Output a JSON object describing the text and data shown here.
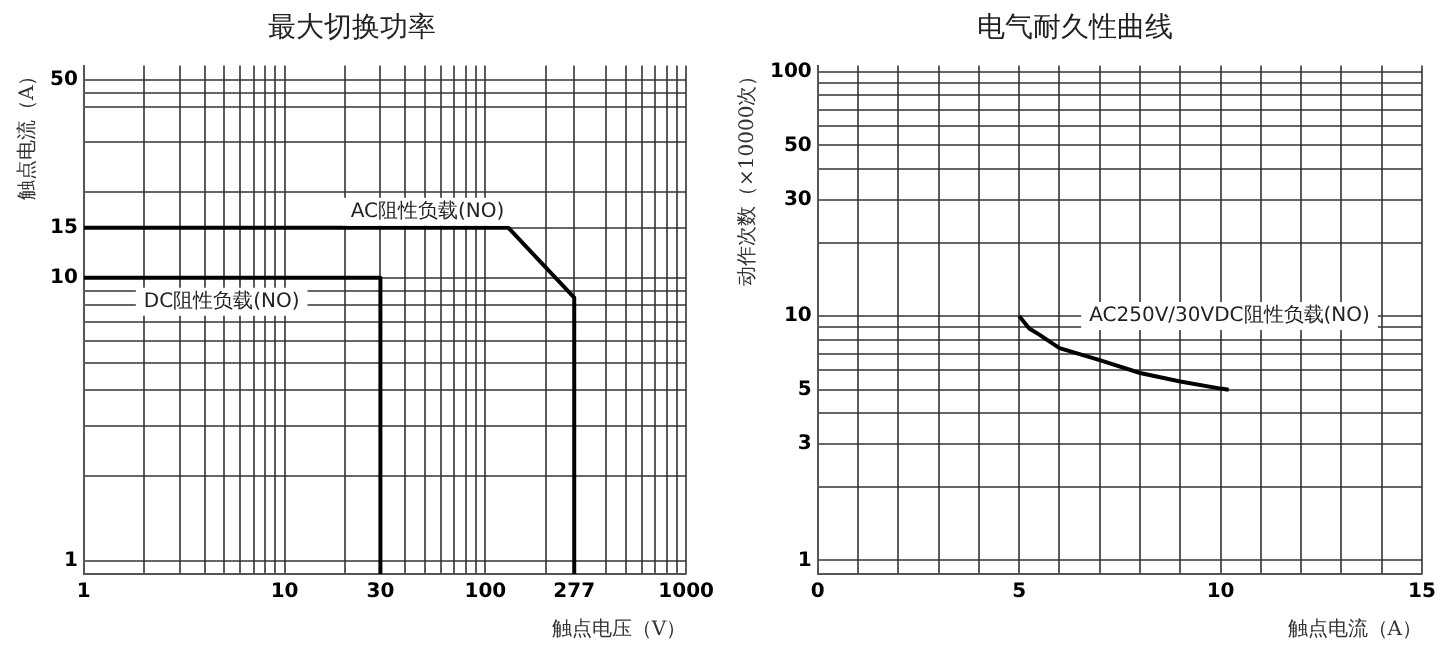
{
  "chart_data": [
    {
      "type": "line",
      "title": "最大切换功率",
      "xlabel": "触点电压（V）",
      "ylabel": "触点电流（A）",
      "log": "xy",
      "grid": true,
      "legend": false,
      "marker": "none",
      "line_style": "solid",
      "xlim": [
        1,
        1000
      ],
      "xticks": [
        1,
        {
          "value": 2,
          "label": null
        },
        {
          "value": 3,
          "label": null
        },
        {
          "value": 4,
          "label": null
        },
        {
          "value": 5,
          "label": null
        },
        {
          "value": 6,
          "label": null
        },
        {
          "value": 7,
          "label": null
        },
        {
          "value": 8,
          "label": null
        },
        {
          "value": 9,
          "label": null
        },
        10,
        {
          "value": 20,
          "label": null
        },
        30,
        {
          "value": 40,
          "label": null
        },
        {
          "value": 50,
          "label": null
        },
        {
          "value": 60,
          "label": null
        },
        {
          "value": 70,
          "label": null
        },
        {
          "value": 80,
          "label": null
        },
        {
          "value": 90,
          "label": null
        },
        100,
        {
          "value": 200,
          "label": null
        },
        277,
        {
          "value": 400,
          "label": null
        },
        {
          "value": 500,
          "label": null
        },
        {
          "value": 600,
          "label": null
        },
        {
          "value": 700,
          "label": null
        },
        {
          "value": 800,
          "label": null
        },
        {
          "value": 900,
          "label": null
        },
        1000
      ],
      "ylim": [
        0.9,
        56
      ],
      "yticks": [
        1,
        {
          "value": 2,
          "label": null
        },
        {
          "value": 3,
          "label": null
        },
        {
          "value": 4,
          "label": null
        },
        {
          "value": 5,
          "label": null
        },
        {
          "value": 6,
          "label": null
        },
        {
          "value": 7,
          "label": null
        },
        {
          "value": 8,
          "label": null
        },
        {
          "value": 9,
          "label": null
        },
        10,
        15,
        {
          "value": 20,
          "label": null
        },
        {
          "value": 30,
          "label": null
        },
        {
          "value": 40,
          "label": null
        },
        {
          "value": 45,
          "label": null
        },
        50
      ],
      "series": [
        {
          "name": "AC阻性负载(NO)",
          "color": "#000000",
          "x": [
            1,
            130,
            277,
            277
          ],
          "values": [
            15,
            15,
            8.5,
            0.9
          ]
        },
        {
          "name": "DC阻性负载(NO)",
          "color": "#000000",
          "x": [
            1,
            30,
            30
          ],
          "values": [
            10,
            10,
            0.9
          ]
        }
      ]
    },
    {
      "type": "line",
      "title": "电气耐久性曲线",
      "xlabel": "触点电流（A）",
      "ylabel": "动作次数（×10000次）",
      "log": "y",
      "grid": true,
      "legend": false,
      "marker": "none",
      "line_style": "solid",
      "xlim": [
        0,
        15
      ],
      "xticks": [
        0,
        {
          "value": 1,
          "label": null
        },
        {
          "value": 2,
          "label": null
        },
        {
          "value": 3,
          "label": null
        },
        {
          "value": 4,
          "label": null
        },
        5,
        {
          "value": 6,
          "label": null
        },
        {
          "value": 7,
          "label": null
        },
        {
          "value": 8,
          "label": null
        },
        {
          "value": 9,
          "label": null
        },
        10,
        {
          "value": 11,
          "label": null
        },
        {
          "value": 12,
          "label": null
        },
        {
          "value": 13,
          "label": null
        },
        {
          "value": 14,
          "label": null
        },
        15
      ],
      "ylim": [
        0.88,
        106
      ],
      "yticks": [
        1,
        {
          "value": 2,
          "label": null
        },
        3,
        {
          "value": 4,
          "label": null
        },
        5,
        {
          "value": 6,
          "label": null
        },
        {
          "value": 7,
          "label": null
        },
        {
          "value": 8,
          "label": null
        },
        {
          "value": 9,
          "label": null
        },
        10,
        {
          "value": 20,
          "label": null
        },
        30,
        {
          "value": 40,
          "label": null
        },
        50,
        {
          "value": 60,
          "label": null
        },
        {
          "value": 70,
          "label": null
        },
        {
          "value": 80,
          "label": null
        },
        {
          "value": 90,
          "label": null
        },
        100
      ],
      "series": [
        {
          "name": "AC250V/30VDC阻性负载(NO)",
          "color": "#000000",
          "x": [
            5,
            5.25,
            5.5,
            6,
            7,
            8,
            9,
            10,
            10.2
          ],
          "values": [
            10,
            8.9,
            8.4,
            7.4,
            6.6,
            5.85,
            5.4,
            5.05,
            5
          ]
        }
      ]
    }
  ]
}
